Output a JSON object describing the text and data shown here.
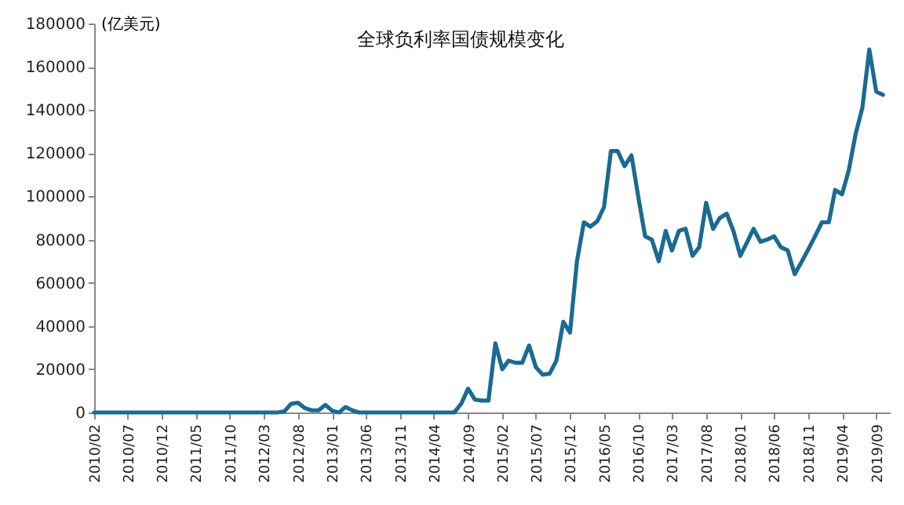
{
  "chart_data": {
    "type": "line",
    "title": "全球负利率国债规模变化",
    "ylabel": "(亿美元)",
    "x": [
      "2010-02",
      "2012-05",
      "2012-06",
      "2012-07",
      "2012-08",
      "2012-09",
      "2012-10",
      "2012-11",
      "2012-12",
      "2013-01",
      "2013-02",
      "2013-03",
      "2013-04",
      "2013-05",
      "2014-07",
      "2014-08",
      "2014-09",
      "2014-10",
      "2014-11",
      "2014-12",
      "2015-01",
      "2015-02",
      "2015-03",
      "2015-04",
      "2015-05",
      "2015-06",
      "2015-07",
      "2015-08",
      "2015-09",
      "2015-10",
      "2015-11",
      "2015-12",
      "2016-01",
      "2016-02",
      "2016-03",
      "2016-04",
      "2016-05",
      "2016-06",
      "2016-07",
      "2016-08",
      "2016-09",
      "2016-10",
      "2016-11",
      "2016-12",
      "2017-01",
      "2017-02",
      "2017-03",
      "2017-04",
      "2017-05",
      "2017-06",
      "2017-07",
      "2017-08",
      "2017-09",
      "2017-10",
      "2017-11",
      "2017-12",
      "2018-01",
      "2018-02",
      "2018-03",
      "2018-04",
      "2018-05",
      "2018-06",
      "2018-07",
      "2018-08",
      "2018-09",
      "2018-10",
      "2018-11",
      "2018-12",
      "2019-01",
      "2019-02",
      "2019-03",
      "2019-04",
      "2019-05",
      "2019-06",
      "2019-07",
      "2019-08",
      "2019-09",
      "2019-10"
    ],
    "series": [
      {
        "color": "#1b6a93",
        "values": [
          0,
          0,
          500,
          4000,
          4500,
          2000,
          1000,
          1000,
          3500,
          800,
          0,
          2500,
          1000,
          0,
          0,
          4000,
          11000,
          6000,
          5500,
          5500,
          32000,
          20000,
          24000,
          23000,
          23000,
          31000,
          21000,
          17500,
          18000,
          24000,
          42000,
          37000,
          70000,
          88000,
          86000,
          88500,
          95000,
          121000,
          121000,
          114000,
          119000,
          100000,
          81500,
          80000,
          70000,
          84000,
          75000,
          84000,
          85000,
          72500,
          76500,
          97000,
          85000,
          90000,
          92000,
          84000,
          72500,
          79000,
          85000,
          79000,
          80000,
          81500,
          76500,
          75000,
          64000,
          69500,
          75500,
          81500,
          88000,
          88000,
          103000,
          101000,
          112000,
          129000,
          141000,
          168000,
          148500,
          147000
        ]
      }
    ],
    "xlim": [
      "2010-02",
      "2019-11"
    ],
    "xticks": [
      {
        "value": "2010-02",
        "label": "2010/02"
      },
      {
        "value": "2010-07",
        "label": "2010/07"
      },
      {
        "value": "2010-12",
        "label": "2010/12"
      },
      {
        "value": "2011-05",
        "label": "2011/05"
      },
      {
        "value": "2011-10",
        "label": "2011/10"
      },
      {
        "value": "2012-03",
        "label": "2012/03"
      },
      {
        "value": "2012-08",
        "label": "2012/08"
      },
      {
        "value": "2013-01",
        "label": "2013/01"
      },
      {
        "value": "2013-06",
        "label": "2013/06"
      },
      {
        "value": "2013-11",
        "label": "2013/11"
      },
      {
        "value": "2014-04",
        "label": "2014/04"
      },
      {
        "value": "2014-09",
        "label": "2014/09"
      },
      {
        "value": "2015-02",
        "label": "2015/02"
      },
      {
        "value": "2015-07",
        "label": "2015/07"
      },
      {
        "value": "2015-12",
        "label": "2015/12"
      },
      {
        "value": "2016-05",
        "label": "2016/05"
      },
      {
        "value": "2016-10",
        "label": "2016/10"
      },
      {
        "value": "2017-03",
        "label": "2017/03"
      },
      {
        "value": "2017-08",
        "label": "2017/08"
      },
      {
        "value": "2018-01",
        "label": "2018/01"
      },
      {
        "value": "2018-06",
        "label": "2018/06"
      },
      {
        "value": "2018-11",
        "label": "2018/11"
      },
      {
        "value": "2019-04",
        "label": "2019/04"
      },
      {
        "value": "2019-09",
        "label": "2019/09"
      }
    ],
    "ylim": [
      0,
      180000
    ],
    "yticks": [
      0,
      20000,
      40000,
      60000,
      80000,
      100000,
      120000,
      140000,
      160000,
      180000
    ],
    "grid": false,
    "line_style": "solid",
    "marker": "none"
  }
}
